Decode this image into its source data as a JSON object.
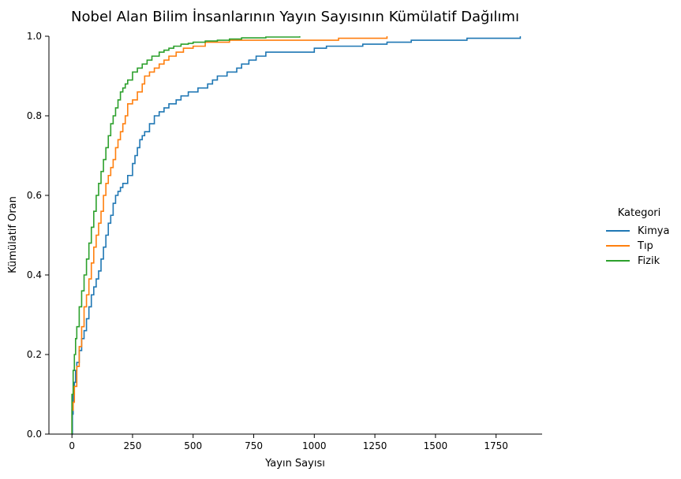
{
  "chart_data": {
    "type": "line",
    "drawstyle": "steps-post",
    "title": "Nobel Alan Bilim İnsanlarının Yayın Sayısının Kümülatif Dağılımı",
    "xlabel": "Yayın Sayısı",
    "ylabel": "Kümülatif Oran",
    "xlim": [
      -95,
      1940
    ],
    "ylim": [
      0,
      1
    ],
    "xticks": [
      0,
      250,
      500,
      750,
      1000,
      1250,
      1500,
      1750
    ],
    "xtick_labels": [
      "0",
      "250",
      "500",
      "750",
      "1000",
      "1250",
      "1500",
      "1750"
    ],
    "yticks": [
      0,
      0.2,
      0.4,
      0.6,
      0.8,
      1.0
    ],
    "ytick_labels": [
      "0.0",
      "0.2",
      "0.4",
      "0.6",
      "0.8",
      "1.0"
    ],
    "grid": false,
    "legend": {
      "title": "Kategori",
      "placement": "right"
    },
    "series": [
      {
        "name": "Kimya",
        "color": "#1f77b4",
        "x": [
          0,
          2,
          5,
          10,
          15,
          20,
          30,
          40,
          50,
          60,
          70,
          80,
          90,
          100,
          110,
          120,
          130,
          140,
          150,
          160,
          170,
          180,
          190,
          200,
          210,
          230,
          250,
          260,
          270,
          280,
          290,
          300,
          320,
          340,
          360,
          380,
          400,
          430,
          450,
          480,
          520,
          560,
          580,
          600,
          640,
          680,
          700,
          730,
          760,
          800,
          850,
          1000,
          1050,
          1200,
          1300,
          1400,
          1630,
          1850
        ],
        "y": [
          0.0,
          0.05,
          0.1,
          0.13,
          0.16,
          0.18,
          0.21,
          0.24,
          0.26,
          0.29,
          0.32,
          0.35,
          0.37,
          0.39,
          0.41,
          0.44,
          0.47,
          0.5,
          0.53,
          0.55,
          0.58,
          0.6,
          0.61,
          0.62,
          0.63,
          0.65,
          0.68,
          0.7,
          0.72,
          0.74,
          0.75,
          0.76,
          0.78,
          0.8,
          0.81,
          0.82,
          0.83,
          0.84,
          0.85,
          0.86,
          0.87,
          0.88,
          0.89,
          0.9,
          0.91,
          0.92,
          0.93,
          0.94,
          0.95,
          0.96,
          0.96,
          0.97,
          0.975,
          0.98,
          0.985,
          0.99,
          0.995,
          1.0
        ]
      },
      {
        "name": "Tıp",
        "color": "#ff7f0e",
        "x": [
          0,
          5,
          10,
          20,
          30,
          40,
          50,
          60,
          70,
          80,
          90,
          100,
          110,
          120,
          130,
          140,
          150,
          160,
          170,
          180,
          190,
          200,
          210,
          220,
          230,
          250,
          270,
          290,
          300,
          320,
          340,
          360,
          380,
          400,
          430,
          460,
          500,
          550,
          650,
          700,
          800,
          1100,
          1300
        ],
        "y": [
          0.06,
          0.08,
          0.12,
          0.17,
          0.22,
          0.27,
          0.32,
          0.35,
          0.39,
          0.43,
          0.47,
          0.5,
          0.53,
          0.56,
          0.6,
          0.63,
          0.65,
          0.67,
          0.69,
          0.72,
          0.74,
          0.76,
          0.78,
          0.8,
          0.83,
          0.84,
          0.86,
          0.88,
          0.9,
          0.91,
          0.92,
          0.93,
          0.94,
          0.95,
          0.96,
          0.97,
          0.975,
          0.985,
          0.99,
          0.99,
          0.99,
          0.995,
          1.0
        ]
      },
      {
        "name": "Fizik",
        "color": "#2ca02c",
        "x": [
          0,
          5,
          10,
          15,
          20,
          30,
          40,
          50,
          60,
          70,
          80,
          90,
          100,
          110,
          120,
          130,
          140,
          150,
          160,
          170,
          180,
          190,
          200,
          210,
          220,
          230,
          250,
          270,
          290,
          310,
          330,
          360,
          380,
          400,
          420,
          450,
          480,
          500,
          550,
          600,
          650,
          700,
          800,
          940
        ],
        "y": [
          0.1,
          0.16,
          0.2,
          0.24,
          0.27,
          0.32,
          0.36,
          0.4,
          0.44,
          0.48,
          0.52,
          0.56,
          0.6,
          0.63,
          0.66,
          0.69,
          0.72,
          0.75,
          0.78,
          0.8,
          0.82,
          0.84,
          0.86,
          0.87,
          0.88,
          0.89,
          0.91,
          0.92,
          0.93,
          0.94,
          0.95,
          0.96,
          0.965,
          0.97,
          0.975,
          0.98,
          0.982,
          0.985,
          0.988,
          0.99,
          0.993,
          0.996,
          0.998,
          1.0
        ]
      }
    ]
  }
}
